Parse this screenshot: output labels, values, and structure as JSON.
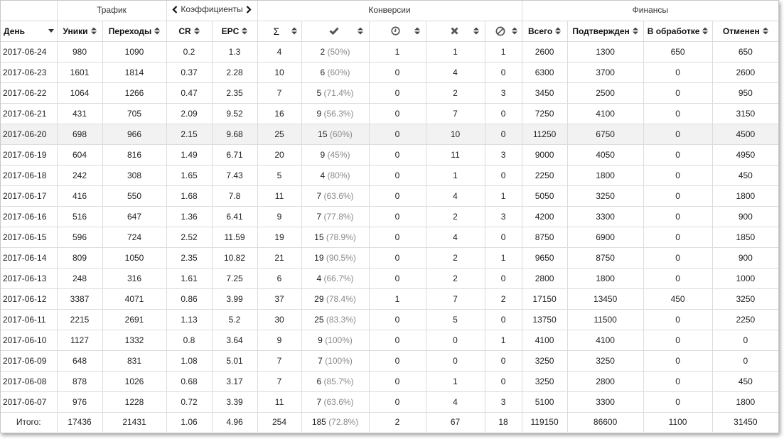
{
  "groups": {
    "traffic": "Трафик",
    "coefficients": "Коэффициенты",
    "conversions": "Конверсии",
    "finance": "Финансы"
  },
  "columns": {
    "day": "День",
    "uniques": "Уники",
    "clicks": "Переходы",
    "cr": "CR",
    "epc": "EPC",
    "sum_icon": "Σ",
    "confirmed_icon": "check-icon",
    "pending_icon": "clock-icon",
    "rejected_icon": "cross-icon",
    "canceled_icon": "ban-icon",
    "total": "Всего",
    "confirmed": "Подтвержден",
    "pending": "В обработке",
    "canceled": "Отменен"
  },
  "rows": [
    {
      "day": "2017-06-24",
      "uniq": "980",
      "clicks": "1090",
      "cr": "0.2",
      "epc": "1.3",
      "sum": "4",
      "conf": "2",
      "conf_pct": "(50%)",
      "pend": "1",
      "rej": "1",
      "canc": "1",
      "f_total": "2600",
      "f_conf": "1300",
      "f_pend": "650",
      "f_canc": "650"
    },
    {
      "day": "2017-06-23",
      "uniq": "1601",
      "clicks": "1814",
      "cr": "0.37",
      "epc": "2.28",
      "sum": "10",
      "conf": "6",
      "conf_pct": "(60%)",
      "pend": "0",
      "rej": "4",
      "canc": "0",
      "f_total": "6300",
      "f_conf": "3700",
      "f_pend": "0",
      "f_canc": "2600"
    },
    {
      "day": "2017-06-22",
      "uniq": "1064",
      "clicks": "1266",
      "cr": "0.47",
      "epc": "2.35",
      "sum": "7",
      "conf": "5",
      "conf_pct": "(71.4%)",
      "pend": "0",
      "rej": "2",
      "canc": "3",
      "f_total": "3450",
      "f_conf": "2500",
      "f_pend": "0",
      "f_canc": "950"
    },
    {
      "day": "2017-06-21",
      "uniq": "431",
      "clicks": "705",
      "cr": "2.09",
      "epc": "9.52",
      "sum": "16",
      "conf": "9",
      "conf_pct": "(56.3%)",
      "pend": "0",
      "rej": "7",
      "canc": "0",
      "f_total": "7250",
      "f_conf": "4100",
      "f_pend": "0",
      "f_canc": "3150"
    },
    {
      "day": "2017-06-20",
      "uniq": "698",
      "clicks": "966",
      "cr": "2.15",
      "epc": "9.68",
      "sum": "25",
      "conf": "15",
      "conf_pct": "(60%)",
      "pend": "0",
      "rej": "10",
      "canc": "0",
      "f_total": "11250",
      "f_conf": "6750",
      "f_pend": "0",
      "f_canc": "4500"
    },
    {
      "day": "2017-06-19",
      "uniq": "604",
      "clicks": "816",
      "cr": "1.49",
      "epc": "6.71",
      "sum": "20",
      "conf": "9",
      "conf_pct": "(45%)",
      "pend": "0",
      "rej": "11",
      "canc": "3",
      "f_total": "9000",
      "f_conf": "4050",
      "f_pend": "0",
      "f_canc": "4950"
    },
    {
      "day": "2017-06-18",
      "uniq": "242",
      "clicks": "308",
      "cr": "1.65",
      "epc": "7.43",
      "sum": "5",
      "conf": "4",
      "conf_pct": "(80%)",
      "pend": "0",
      "rej": "1",
      "canc": "0",
      "f_total": "2250",
      "f_conf": "1800",
      "f_pend": "0",
      "f_canc": "450"
    },
    {
      "day": "2017-06-17",
      "uniq": "416",
      "clicks": "550",
      "cr": "1.68",
      "epc": "7.8",
      "sum": "11",
      "conf": "7",
      "conf_pct": "(63.6%)",
      "pend": "0",
      "rej": "4",
      "canc": "1",
      "f_total": "5050",
      "f_conf": "3250",
      "f_pend": "0",
      "f_canc": "1800"
    },
    {
      "day": "2017-06-16",
      "uniq": "516",
      "clicks": "647",
      "cr": "1.36",
      "epc": "6.41",
      "sum": "9",
      "conf": "7",
      "conf_pct": "(77.8%)",
      "pend": "0",
      "rej": "2",
      "canc": "3",
      "f_total": "4200",
      "f_conf": "3300",
      "f_pend": "0",
      "f_canc": "900"
    },
    {
      "day": "2017-06-15",
      "uniq": "596",
      "clicks": "724",
      "cr": "2.52",
      "epc": "11.59",
      "sum": "19",
      "conf": "15",
      "conf_pct": "(78.9%)",
      "pend": "0",
      "rej": "4",
      "canc": "0",
      "f_total": "8750",
      "f_conf": "6900",
      "f_pend": "0",
      "f_canc": "1850"
    },
    {
      "day": "2017-06-14",
      "uniq": "809",
      "clicks": "1050",
      "cr": "2.35",
      "epc": "10.82",
      "sum": "21",
      "conf": "19",
      "conf_pct": "(90.5%)",
      "pend": "0",
      "rej": "2",
      "canc": "1",
      "f_total": "9650",
      "f_conf": "8750",
      "f_pend": "0",
      "f_canc": "900"
    },
    {
      "day": "2017-06-13",
      "uniq": "248",
      "clicks": "316",
      "cr": "1.61",
      "epc": "7.25",
      "sum": "6",
      "conf": "4",
      "conf_pct": "(66.7%)",
      "pend": "0",
      "rej": "2",
      "canc": "0",
      "f_total": "2800",
      "f_conf": "1800",
      "f_pend": "0",
      "f_canc": "1000"
    },
    {
      "day": "2017-06-12",
      "uniq": "3387",
      "clicks": "4071",
      "cr": "0.86",
      "epc": "3.99",
      "sum": "37",
      "conf": "29",
      "conf_pct": "(78.4%)",
      "pend": "1",
      "rej": "7",
      "canc": "2",
      "f_total": "17150",
      "f_conf": "13450",
      "f_pend": "450",
      "f_canc": "3250"
    },
    {
      "day": "2017-06-11",
      "uniq": "2215",
      "clicks": "2691",
      "cr": "1.13",
      "epc": "5.2",
      "sum": "30",
      "conf": "25",
      "conf_pct": "(83.3%)",
      "pend": "0",
      "rej": "5",
      "canc": "0",
      "f_total": "13750",
      "f_conf": "11500",
      "f_pend": "0",
      "f_canc": "2250"
    },
    {
      "day": "2017-06-10",
      "uniq": "1127",
      "clicks": "1332",
      "cr": "0.8",
      "epc": "3.64",
      "sum": "9",
      "conf": "9",
      "conf_pct": "(100%)",
      "pend": "0",
      "rej": "0",
      "canc": "1",
      "f_total": "4100",
      "f_conf": "4100",
      "f_pend": "0",
      "f_canc": "0"
    },
    {
      "day": "2017-06-09",
      "uniq": "648",
      "clicks": "831",
      "cr": "1.08",
      "epc": "5.01",
      "sum": "7",
      "conf": "7",
      "conf_pct": "(100%)",
      "pend": "0",
      "rej": "0",
      "canc": "0",
      "f_total": "3250",
      "f_conf": "3250",
      "f_pend": "0",
      "f_canc": "0"
    },
    {
      "day": "2017-06-08",
      "uniq": "878",
      "clicks": "1026",
      "cr": "0.68",
      "epc": "3.17",
      "sum": "7",
      "conf": "6",
      "conf_pct": "(85.7%)",
      "pend": "0",
      "rej": "1",
      "canc": "0",
      "f_total": "3250",
      "f_conf": "2800",
      "f_pend": "0",
      "f_canc": "450"
    },
    {
      "day": "2017-06-07",
      "uniq": "976",
      "clicks": "1228",
      "cr": "0.72",
      "epc": "3.39",
      "sum": "11",
      "conf": "7",
      "conf_pct": "(63.6%)",
      "pend": "0",
      "rej": "4",
      "canc": "3",
      "f_total": "5100",
      "f_conf": "3300",
      "f_pend": "0",
      "f_canc": "1800"
    }
  ],
  "totals": {
    "label": "Итого:",
    "uniq": "17436",
    "clicks": "21431",
    "cr": "1.06",
    "epc": "4.96",
    "sum": "254",
    "conf": "185",
    "conf_pct": "(72.8%)",
    "pend": "2",
    "rej": "67",
    "canc": "18",
    "f_total": "119150",
    "f_conf": "86600",
    "f_pend": "1100",
    "f_canc": "31450"
  },
  "highlighted_row_index": 4,
  "colors": {
    "grid": "#dcdcdc",
    "highlight": "#f2f2f2",
    "percent_text": "#8a8a8a"
  }
}
